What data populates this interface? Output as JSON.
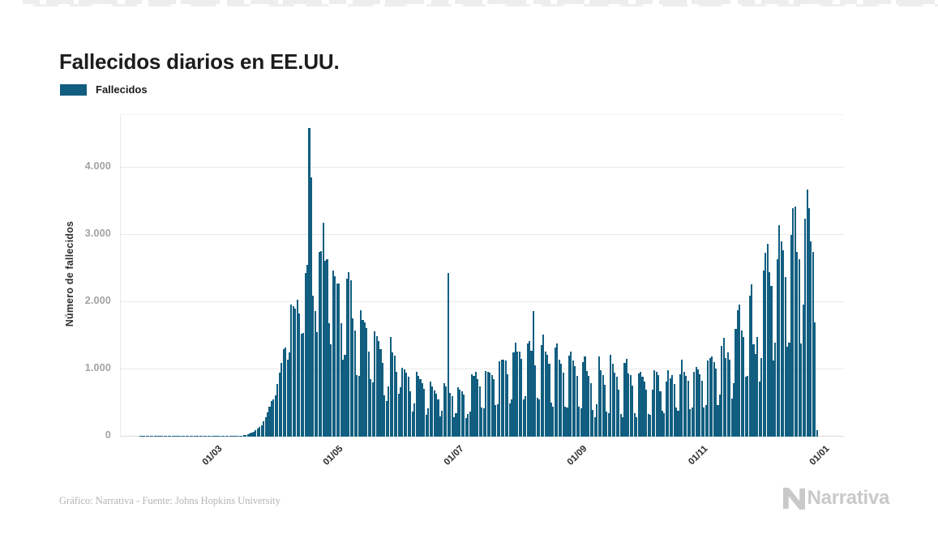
{
  "page": {
    "title": "Fallecidos diarios en EE.UU."
  },
  "legend": {
    "label": "Fallecidos"
  },
  "footer": {
    "credit": "Gráfico: Narrativa - Fuente: Johns Hopkins University",
    "brand": "Narrativa"
  },
  "colors": {
    "bar": "#115e80",
    "grid": "#e8e8e8",
    "axis_line": "#d9d9d9",
    "ytick_text": "#a2a2a2",
    "xtick_text": "#2b2b2b",
    "title_text": "#1c1c1c",
    "footer_text": "#b3b3b3",
    "brand_text": "#c9c9c9"
  },
  "chart_data": {
    "type": "bar",
    "title": "Fallecidos diarios en EE.UU.",
    "series_name": "Fallecidos",
    "xlabel": "",
    "ylabel": "Número de fallecidos",
    "start_date": "2020-01-22",
    "date_format": "DD/MM",
    "grid": "horizontal",
    "legend_position": "top-left",
    "ylim": [
      0,
      4783
    ],
    "y_ticks": [
      {
        "value": 0,
        "label": "0"
      },
      {
        "value": 1000,
        "label": "1.000"
      },
      {
        "value": 2000,
        "label": "2.000"
      },
      {
        "value": 3000,
        "label": "3.000"
      },
      {
        "value": 4000,
        "label": "4.000"
      }
    ],
    "x_ticks": [
      {
        "day_index": 39,
        "label": "01/03"
      },
      {
        "day_index": 100,
        "label": "01/05"
      },
      {
        "day_index": 161,
        "label": "01/07"
      },
      {
        "day_index": 223,
        "label": "01/09"
      },
      {
        "day_index": 284,
        "label": "01/11"
      },
      {
        "day_index": 345,
        "label": "01/01"
      }
    ],
    "values": [
      0,
      0,
      0,
      0,
      0,
      0,
      0,
      0,
      0,
      0,
      0,
      0,
      0,
      0,
      0,
      0,
      0,
      0,
      0,
      0,
      0,
      0,
      0,
      0,
      0,
      0,
      0,
      0,
      0,
      0,
      0,
      0,
      0,
      0,
      0,
      0,
      0,
      0,
      1,
      1,
      1,
      2,
      3,
      2,
      4,
      5,
      4,
      6,
      7,
      9,
      12,
      17,
      23,
      28,
      35,
      45,
      58,
      72,
      95,
      117,
      140,
      165,
      225,
      290,
      365,
      440,
      525,
      560,
      620,
      780,
      950,
      1100,
      1300,
      1330,
      1150,
      1250,
      1970,
      1940,
      1900,
      2035,
      1830,
      1530,
      1540,
      2430,
      2560,
      4591,
      3857,
      2100,
      1870,
      1550,
      2750,
      2760,
      3176,
      2610,
      2640,
      1690,
      1370,
      2470,
      2390,
      2280,
      2280,
      1690,
      1150,
      1220,
      2350,
      2450,
      2330,
      1760,
      1580,
      920,
      900,
      1880,
      1740,
      1700,
      1620,
      1270,
      860,
      810,
      1570,
      1500,
      1420,
      1300,
      1100,
      620,
      530,
      750,
      1480,
      1250,
      1200,
      970,
      640,
      730,
      1030,
      1000,
      950,
      890,
      680,
      370,
      500,
      970,
      900,
      860,
      800,
      710,
      330,
      420,
      820,
      750,
      690,
      640,
      560,
      300,
      380,
      800,
      750,
      2437,
      650,
      600,
      290,
      350,
      740,
      700,
      680,
      630,
      280,
      340,
      370,
      930,
      900,
      960,
      850,
      750,
      430,
      420,
      980,
      970,
      950,
      920,
      850,
      470,
      480,
      1120,
      1150,
      1140,
      1130,
      930,
      490,
      560,
      1250,
      1400,
      1270,
      1270,
      1160,
      550,
      600,
      1380,
      1420,
      1280,
      1866,
      1060,
      580,
      550,
      1360,
      1520,
      1270,
      1220,
      1080,
      510,
      450,
      1320,
      1380,
      1150,
      1090,
      950,
      450,
      430,
      1200,
      1260,
      1130,
      1050,
      900,
      440,
      420,
      1110,
      1190,
      980,
      900,
      790,
      400,
      290,
      480,
      1190,
      990,
      920,
      770,
      370,
      350,
      1220,
      1090,
      950,
      890,
      700,
      340,
      290,
      1100,
      1160,
      940,
      910,
      760,
      350,
      290,
      940,
      960,
      890,
      820,
      700,
      340,
      320,
      700,
      990,
      960,
      910,
      680,
      390,
      350,
      820,
      990,
      870,
      910,
      780,
      430,
      390,
      930,
      1140,
      960,
      900,
      830,
      410,
      430,
      970,
      1040,
      1000,
      930,
      830,
      430,
      470,
      1130,
      1170,
      1190,
      1110,
      1010,
      470,
      630,
      1350,
      1470,
      1170,
      1250,
      1150,
      570,
      790,
      1600,
      1880,
      1960,
      1580,
      1480,
      890,
      900,
      2100,
      2270,
      1370,
      1230,
      1480,
      820,
      1170,
      2470,
      2740,
      2870,
      2440,
      2240,
      1130,
      1400,
      2640,
      3150,
      2900,
      2770,
      2370,
      1340,
      1400,
      3000,
      3400,
      3420,
      2750,
      2640,
      1390,
      1960,
      3240,
      3680,
      3400,
      2900,
      2750,
      1700,
      100
    ]
  }
}
